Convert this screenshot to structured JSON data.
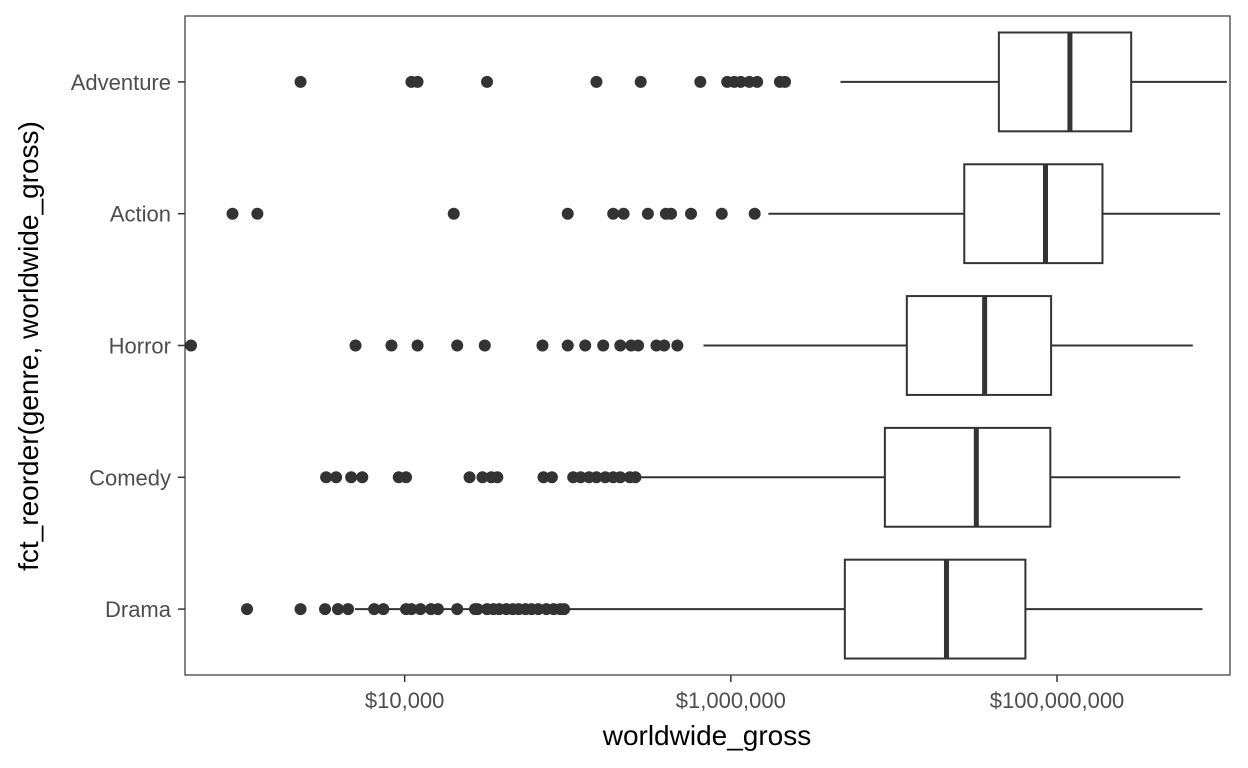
{
  "chart_data": {
    "type": "boxplot",
    "orientation": "horizontal",
    "xlabel": "worldwide_gross",
    "ylabel": "fct_reorder(genre, worldwide_gross)",
    "x_scale": "log10",
    "xlim": [
      450,
      1150000000
    ],
    "x_ticks": [
      {
        "value": 10000,
        "label": "$10,000"
      },
      {
        "value": 1000000,
        "label": "$1,000,000"
      },
      {
        "value": 100000000,
        "label": "$100,000,000"
      }
    ],
    "grid": false,
    "categories": [
      "Drama",
      "Comedy",
      "Horror",
      "Action",
      "Adventure"
    ],
    "boxes": [
      {
        "category": "Drama",
        "whisker_low": 4960,
        "q1": 5000000,
        "median": 21000000,
        "q3": 64000000,
        "whisker_high": 780000000,
        "outliers": [
          1080,
          2300,
          3250,
          3900,
          4500,
          6500,
          7400,
          10200,
          11000,
          12500,
          14500,
          16000,
          21000,
          27000,
          28000,
          32000,
          35000,
          38000,
          42000,
          46000,
          50000,
          55000,
          60000,
          66000,
          74000,
          82000,
          90000,
          95000
        ]
      },
      {
        "category": "Comedy",
        "whisker_low": 280000,
        "q1": 8800000,
        "median": 32000000,
        "q3": 91000000,
        "whisker_high": 570000000,
        "outliers": [
          3300,
          3800,
          4700,
          5500,
          9200,
          10200,
          25000,
          30000,
          34000,
          37000,
          71000,
          80000,
          108000,
          120000,
          135000,
          150000,
          170000,
          190000,
          210000,
          240000,
          260000
        ]
      },
      {
        "category": "Horror",
        "whisker_low": 680000,
        "q1": 12000000,
        "median": 36000000,
        "q3": 92000000,
        "whisker_high": 680000000,
        "outliers": [
          490,
          5000,
          8300,
          12000,
          21000,
          31000,
          70000,
          100000,
          128000,
          165000,
          210000,
          245000,
          270000,
          350000,
          390000,
          470000
        ]
      },
      {
        "category": "Action",
        "whisker_low": 1700000,
        "q1": 27000000,
        "median": 85000000,
        "q3": 190000000,
        "whisker_high": 1000000000,
        "outliers": [
          880,
          1250,
          20000,
          100000,
          190000,
          220000,
          310000,
          400000,
          430000,
          570000,
          880000,
          1400000
        ]
      },
      {
        "category": "Adventure",
        "whisker_low": 4700000,
        "q1": 44000000,
        "median": 120000000,
        "q3": 285000000,
        "whisker_high": 1100000000,
        "outliers": [
          2300,
          11000,
          12000,
          32000,
          150000,
          280000,
          650000,
          950000,
          1050000,
          1150000,
          1300000,
          1450000,
          2000000,
          2150000
        ]
      }
    ]
  }
}
